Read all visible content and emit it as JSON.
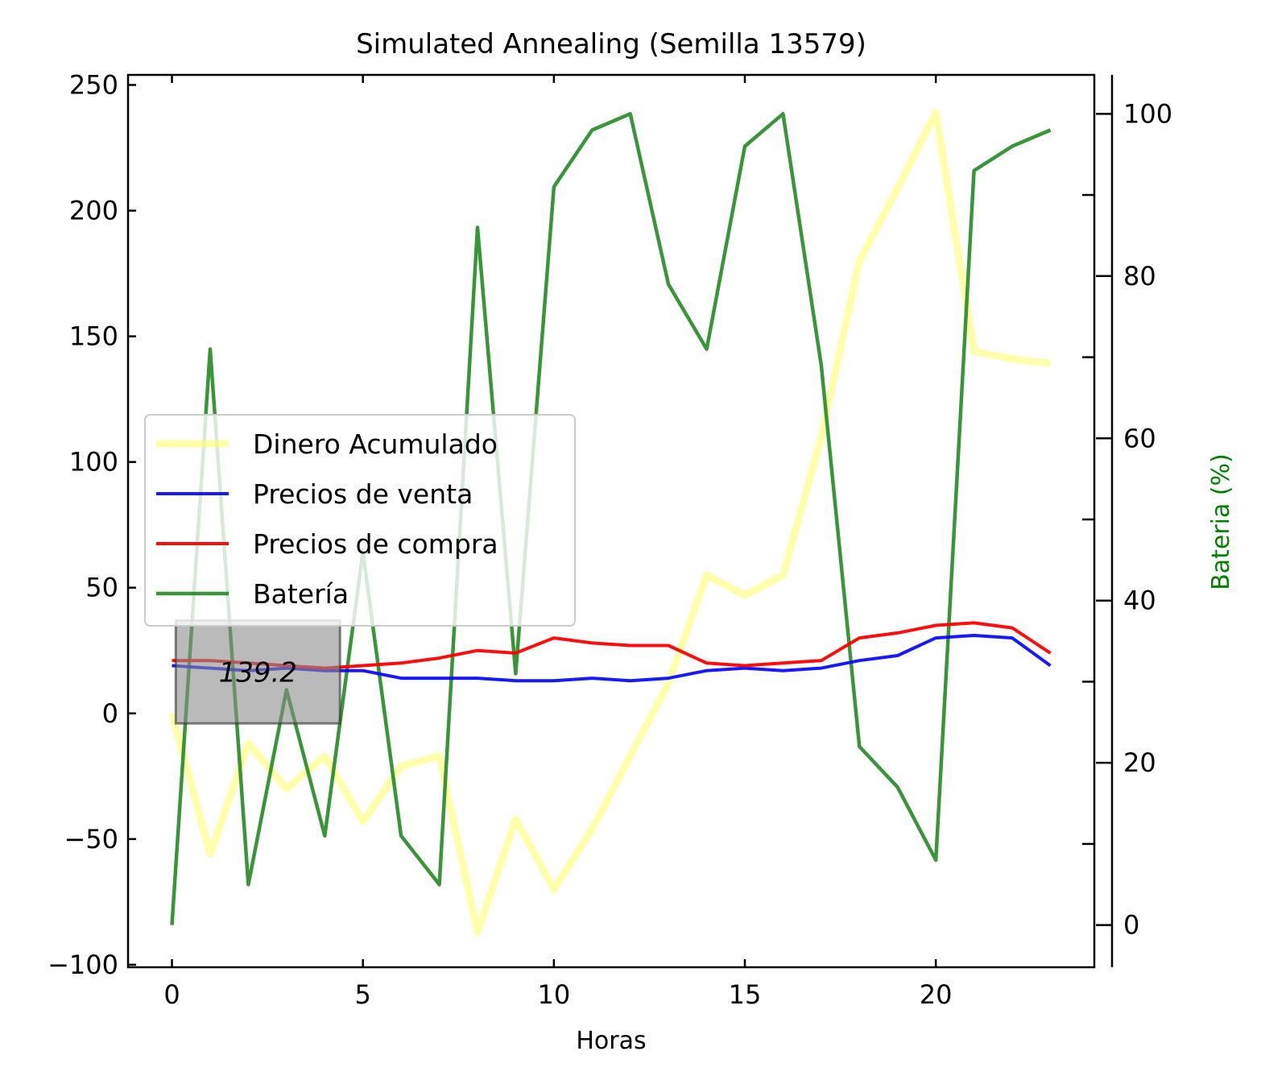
{
  "chart_data": {
    "type": "line",
    "title": "Simulated Annealing (Semilla 13579)",
    "xlabel": "Horas",
    "ylabel": "",
    "y2label": "Bateria (%)",
    "xlim": [
      -1.15,
      24.15
    ],
    "ylim": [
      -101,
      254
    ],
    "y2lim": [
      -5.2,
      104.8
    ],
    "xticks": [
      0,
      5,
      10,
      15,
      20
    ],
    "yticks": [
      -100,
      -50,
      0,
      50,
      100,
      150,
      200,
      250
    ],
    "y2ticks": [
      0,
      20,
      40,
      60,
      80,
      100
    ],
    "y2_minor_ticks": [
      10,
      30,
      50,
      70,
      90
    ],
    "legend_position": "center-left",
    "x": [
      0,
      1,
      2,
      3,
      4,
      5,
      6,
      7,
      8,
      9,
      10,
      11,
      12,
      13,
      14,
      15,
      16,
      17,
      18,
      19,
      20,
      21,
      22,
      23
    ],
    "series": [
      {
        "name": "Dinero Acumulado",
        "axis": "left",
        "color": "#ffff66",
        "values": [
          0,
          -56,
          -12,
          -30,
          -17,
          -43,
          -21,
          -17,
          -87,
          -42,
          -70,
          -46,
          -17,
          12,
          55,
          47,
          55,
          110,
          180,
          209,
          239,
          144,
          141,
          139.2
        ]
      },
      {
        "name": "Precios de venta",
        "axis": "left",
        "color": "#0000ff",
        "values": [
          19,
          18,
          17,
          18,
          17,
          17,
          14,
          14,
          14,
          13,
          13,
          14,
          13,
          14,
          17,
          18,
          17,
          18,
          21,
          23,
          30,
          31,
          30,
          19
        ]
      },
      {
        "name": "Precios de compra",
        "axis": "left",
        "color": "#ff0000",
        "values": [
          21,
          21,
          20,
          19,
          18,
          19,
          20,
          22,
          25,
          24,
          30,
          28,
          27,
          27,
          20,
          19,
          20,
          21,
          30,
          32,
          35,
          36,
          34,
          24
        ]
      },
      {
        "name": "Batería",
        "axis": "right",
        "color": "#228b22",
        "values": [
          0,
          71,
          5,
          29,
          11,
          46,
          11,
          5,
          86,
          31,
          91,
          98,
          100,
          79,
          71,
          96,
          100,
          69,
          22,
          17,
          8,
          93,
          96,
          98
        ]
      }
    ],
    "annotation": {
      "text": "139.2"
    }
  }
}
